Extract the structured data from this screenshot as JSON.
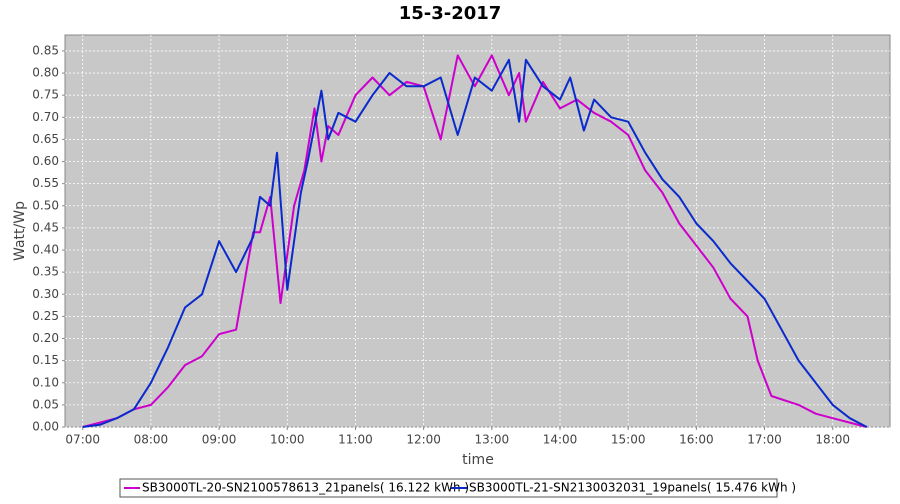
{
  "chart_data": {
    "type": "line",
    "title": "15-3-2017",
    "x_label": "time",
    "y_label": "Watt/Wp",
    "xlim": [
      6.74,
      18.84
    ],
    "ylim": [
      0,
      0.886
    ],
    "grid": true,
    "xticks": [
      {
        "value": 7,
        "label": "07:00"
      },
      {
        "value": 8,
        "label": "08:00"
      },
      {
        "value": 9,
        "label": "09:00"
      },
      {
        "value": 10,
        "label": "10:00"
      },
      {
        "value": 11,
        "label": "11:00"
      },
      {
        "value": 12,
        "label": "12:00"
      },
      {
        "value": 13,
        "label": "13:00"
      },
      {
        "value": 14,
        "label": "14:00"
      },
      {
        "value": 15,
        "label": "15:00"
      },
      {
        "value": 16,
        "label": "16:00"
      },
      {
        "value": 17,
        "label": "17:00"
      },
      {
        "value": 18,
        "label": "18:00"
      }
    ],
    "yticks": [
      {
        "value": 0,
        "label": "0.00"
      },
      {
        "value": 0.05,
        "label": "0.05"
      },
      {
        "value": 0.1,
        "label": "0.10"
      },
      {
        "value": 0.15,
        "label": "0.15"
      },
      {
        "value": 0.2,
        "label": "0.20"
      },
      {
        "value": 0.25,
        "label": "0.25"
      },
      {
        "value": 0.3,
        "label": "0.30"
      },
      {
        "value": 0.35,
        "label": "0.35"
      },
      {
        "value": 0.4,
        "label": "0.40"
      },
      {
        "value": 0.45,
        "label": "0.45"
      },
      {
        "value": 0.5,
        "label": "0.50"
      },
      {
        "value": 0.55,
        "label": "0.55"
      },
      {
        "value": 0.6,
        "label": "0.60"
      },
      {
        "value": 0.65,
        "label": "0.65"
      },
      {
        "value": 0.7,
        "label": "0.70"
      },
      {
        "value": 0.75,
        "label": "0.75"
      },
      {
        "value": 0.8,
        "label": "0.80"
      },
      {
        "value": 0.85,
        "label": "0.85"
      }
    ],
    "series": [
      {
        "name": "SB3000TL-20-SN2100578613_21panels( 16.122 kWh )",
        "color": "#cc00cc",
        "x": [
          7.0,
          7.25,
          7.5,
          7.75,
          8.0,
          8.25,
          8.5,
          8.75,
          9.0,
          9.25,
          9.5,
          9.6,
          9.75,
          9.9,
          10.1,
          10.25,
          10.4,
          10.5,
          10.6,
          10.75,
          11.0,
          11.25,
          11.5,
          11.75,
          12.0,
          12.25,
          12.5,
          12.75,
          13.0,
          13.25,
          13.4,
          13.5,
          13.75,
          14.0,
          14.25,
          14.5,
          14.75,
          15.0,
          15.25,
          15.5,
          15.75,
          16.0,
          16.25,
          16.5,
          16.75,
          16.9,
          17.1,
          17.5,
          17.75,
          18.0,
          18.25,
          18.5
        ],
        "values": [
          0.0,
          0.01,
          0.02,
          0.04,
          0.05,
          0.09,
          0.14,
          0.16,
          0.21,
          0.22,
          0.44,
          0.44,
          0.52,
          0.28,
          0.5,
          0.58,
          0.72,
          0.6,
          0.68,
          0.66,
          0.75,
          0.79,
          0.75,
          0.78,
          0.77,
          0.65,
          0.84,
          0.77,
          0.84,
          0.75,
          0.8,
          0.69,
          0.78,
          0.72,
          0.74,
          0.71,
          0.69,
          0.66,
          0.58,
          0.53,
          0.46,
          0.41,
          0.36,
          0.29,
          0.25,
          0.15,
          0.07,
          0.05,
          0.03,
          0.02,
          0.01,
          0.0
        ]
      },
      {
        "name": "SB3000TL-21-SN2130032031_19panels( 15.476 kWh )",
        "color": "#0a2acc",
        "x": [
          7.0,
          7.25,
          7.5,
          7.75,
          8.0,
          8.25,
          8.5,
          8.75,
          9.0,
          9.25,
          9.5,
          9.6,
          9.75,
          9.85,
          10.0,
          10.2,
          10.3,
          10.5,
          10.6,
          10.75,
          11.0,
          11.25,
          11.5,
          11.75,
          12.0,
          12.25,
          12.5,
          12.75,
          13.0,
          13.25,
          13.4,
          13.5,
          13.75,
          14.0,
          14.15,
          14.35,
          14.5,
          14.75,
          15.0,
          15.25,
          15.5,
          15.75,
          16.0,
          16.25,
          16.5,
          16.75,
          17.0,
          17.25,
          17.5,
          17.75,
          18.0,
          18.25,
          18.5
        ],
        "values": [
          0.0,
          0.005,
          0.02,
          0.04,
          0.1,
          0.18,
          0.27,
          0.3,
          0.42,
          0.35,
          0.43,
          0.52,
          0.5,
          0.62,
          0.31,
          0.53,
          0.6,
          0.76,
          0.65,
          0.71,
          0.69,
          0.75,
          0.8,
          0.77,
          0.77,
          0.79,
          0.66,
          0.79,
          0.76,
          0.83,
          0.69,
          0.83,
          0.77,
          0.74,
          0.79,
          0.67,
          0.74,
          0.7,
          0.69,
          0.62,
          0.56,
          0.52,
          0.46,
          0.42,
          0.37,
          0.33,
          0.29,
          0.22,
          0.15,
          0.1,
          0.05,
          0.02,
          0.0
        ]
      }
    ]
  }
}
